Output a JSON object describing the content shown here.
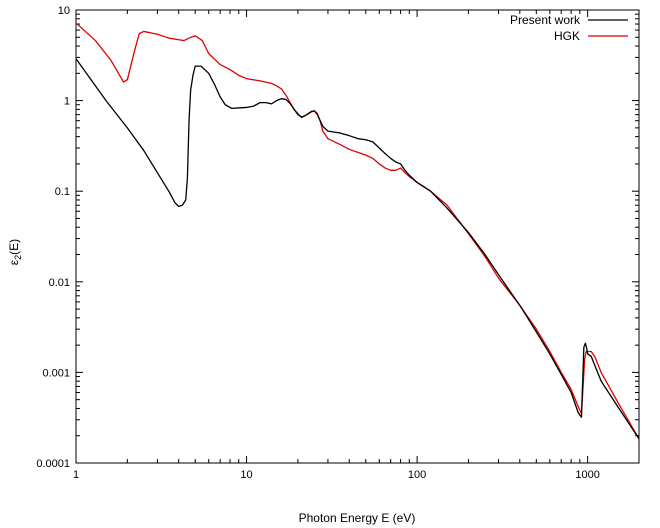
{
  "chart_data": {
    "type": "line",
    "title": "",
    "xlabel": "Photon Energy E (eV)",
    "ylabel_main": "ε",
    "ylabel_sub": "2",
    "ylabel_tail": "(E)",
    "xscale": "log",
    "yscale": "log",
    "xlim": [
      1,
      2000
    ],
    "ylim": [
      0.0001,
      10
    ],
    "grid": false,
    "legend_position": "top-right",
    "x_ticks": [
      {
        "value": 1,
        "label": "1"
      },
      {
        "value": 10,
        "label": "10"
      },
      {
        "value": 100,
        "label": "100"
      },
      {
        "value": 1000,
        "label": "1000"
      }
    ],
    "y_ticks": [
      {
        "value": 0.0001,
        "label": "0.0001"
      },
      {
        "value": 0.001,
        "label": "0.001"
      },
      {
        "value": 0.01,
        "label": "0.01"
      },
      {
        "value": 0.1,
        "label": "0.1"
      },
      {
        "value": 1,
        "label": "1"
      },
      {
        "value": 10,
        "label": "10"
      }
    ],
    "series": [
      {
        "name": "Present work",
        "color": "#000000",
        "points": [
          [
            1,
            2.9
          ],
          [
            1.5,
            1.0
          ],
          [
            2,
            0.5
          ],
          [
            2.5,
            0.28
          ],
          [
            3,
            0.16
          ],
          [
            3.5,
            0.1
          ],
          [
            3.8,
            0.075
          ],
          [
            4.0,
            0.068
          ],
          [
            4.2,
            0.07
          ],
          [
            4.4,
            0.08
          ],
          [
            4.5,
            0.14
          ],
          [
            4.6,
            0.6
          ],
          [
            4.7,
            1.3
          ],
          [
            4.85,
            1.9
          ],
          [
            5.0,
            2.4
          ],
          [
            5.4,
            2.4
          ],
          [
            6,
            2.0
          ],
          [
            6.5,
            1.5
          ],
          [
            7,
            1.1
          ],
          [
            7.5,
            0.9
          ],
          [
            8.2,
            0.82
          ],
          [
            9,
            0.83
          ],
          [
            10,
            0.84
          ],
          [
            11,
            0.87
          ],
          [
            12,
            0.95
          ],
          [
            13,
            0.95
          ],
          [
            14,
            0.92
          ],
          [
            15,
            1.0
          ],
          [
            16,
            1.05
          ],
          [
            17,
            1.03
          ],
          [
            18,
            0.93
          ],
          [
            19,
            0.8
          ],
          [
            20,
            0.7
          ],
          [
            21,
            0.66
          ],
          [
            22,
            0.68
          ],
          [
            24,
            0.76
          ],
          [
            25,
            0.77
          ],
          [
            26,
            0.7
          ],
          [
            28,
            0.52
          ],
          [
            30,
            0.46
          ],
          [
            35,
            0.44
          ],
          [
            40,
            0.41
          ],
          [
            45,
            0.38
          ],
          [
            50,
            0.37
          ],
          [
            55,
            0.35
          ],
          [
            60,
            0.3
          ],
          [
            65,
            0.26
          ],
          [
            70,
            0.23
          ],
          [
            75,
            0.21
          ],
          [
            80,
            0.2
          ],
          [
            85,
            0.17
          ],
          [
            90,
            0.15
          ],
          [
            100,
            0.125
          ],
          [
            120,
            0.1
          ],
          [
            150,
            0.065
          ],
          [
            200,
            0.035
          ],
          [
            250,
            0.02
          ],
          [
            300,
            0.012
          ],
          [
            400,
            0.0055
          ],
          [
            500,
            0.0028
          ],
          [
            600,
            0.0016
          ],
          [
            700,
            0.00095
          ],
          [
            800,
            0.0006
          ],
          [
            880,
            0.00036
          ],
          [
            920,
            0.00032
          ],
          [
            930,
            0.0006
          ],
          [
            950,
            0.0019
          ],
          [
            970,
            0.0021
          ],
          [
            990,
            0.0018
          ],
          [
            1000,
            0.0016
          ],
          [
            1050,
            0.0015
          ],
          [
            1100,
            0.0012
          ],
          [
            1200,
            0.0008
          ],
          [
            1500,
            0.00042
          ],
          [
            2000,
            0.000185
          ]
        ]
      },
      {
        "name": "HGK",
        "color": "#e00000",
        "points": [
          [
            1,
            7.2
          ],
          [
            1.3,
            4.6
          ],
          [
            1.6,
            2.8
          ],
          [
            1.9,
            1.6
          ],
          [
            2.0,
            1.7
          ],
          [
            2.2,
            3.5
          ],
          [
            2.35,
            5.5
          ],
          [
            2.5,
            5.8
          ],
          [
            3,
            5.4
          ],
          [
            3.5,
            4.9
          ],
          [
            4,
            4.7
          ],
          [
            4.3,
            4.6
          ],
          [
            4.6,
            4.9
          ],
          [
            5,
            5.2
          ],
          [
            5.5,
            4.6
          ],
          [
            6,
            3.3
          ],
          [
            7,
            2.5
          ],
          [
            8,
            2.2
          ],
          [
            9,
            1.9
          ],
          [
            10,
            1.75
          ],
          [
            12,
            1.65
          ],
          [
            14,
            1.55
          ],
          [
            15,
            1.45
          ],
          [
            16,
            1.35
          ],
          [
            17,
            1.15
          ],
          [
            18,
            0.95
          ],
          [
            19,
            0.8
          ],
          [
            20,
            0.72
          ],
          [
            21,
            0.65
          ],
          [
            22,
            0.68
          ],
          [
            24,
            0.75
          ],
          [
            25,
            0.77
          ],
          [
            26,
            0.72
          ],
          [
            27,
            0.6
          ],
          [
            28,
            0.46
          ],
          [
            30,
            0.38
          ],
          [
            35,
            0.33
          ],
          [
            40,
            0.29
          ],
          [
            50,
            0.25
          ],
          [
            55,
            0.23
          ],
          [
            60,
            0.2
          ],
          [
            65,
            0.18
          ],
          [
            70,
            0.17
          ],
          [
            75,
            0.17
          ],
          [
            80,
            0.18
          ],
          [
            85,
            0.16
          ],
          [
            90,
            0.145
          ],
          [
            100,
            0.125
          ],
          [
            120,
            0.1
          ],
          [
            150,
            0.07
          ],
          [
            200,
            0.034
          ],
          [
            250,
            0.019
          ],
          [
            300,
            0.011
          ],
          [
            400,
            0.0055
          ],
          [
            500,
            0.003
          ],
          [
            600,
            0.0017
          ],
          [
            700,
            0.001
          ],
          [
            800,
            0.00065
          ],
          [
            880,
            0.00042
          ],
          [
            920,
            0.00035
          ],
          [
            940,
            0.0007
          ],
          [
            960,
            0.0014
          ],
          [
            980,
            0.0017
          ],
          [
            1050,
            0.0017
          ],
          [
            1100,
            0.0015
          ],
          [
            1200,
            0.001
          ],
          [
            1500,
            0.00047
          ],
          [
            2000,
            0.000185
          ]
        ]
      }
    ]
  }
}
